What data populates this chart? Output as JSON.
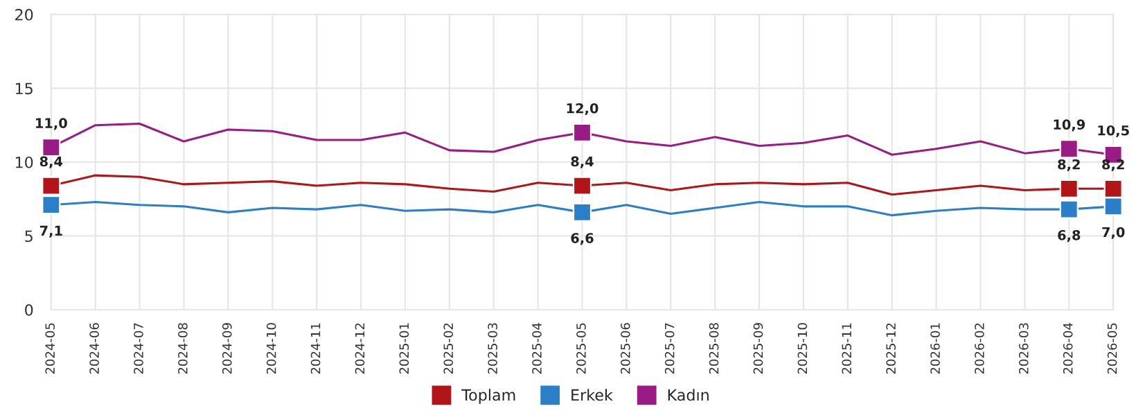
{
  "chart_data": {
    "type": "line",
    "categories": [
      "2024-05",
      "2024-06",
      "2024-07",
      "2024-08",
      "2024-09",
      "2024-10",
      "2024-11",
      "2024-12",
      "2025-01",
      "2025-02",
      "2025-03",
      "2025-04",
      "2025-05",
      "2025-06",
      "2025-07",
      "2025-08",
      "2025-09",
      "2025-10",
      "2025-11",
      "2025-12",
      "2026-01",
      "2026-02",
      "2026-03",
      "2026-04",
      "2026-05"
    ],
    "series": [
      {
        "name": "Toplam",
        "color": "#b11518",
        "values": [
          8.4,
          9.1,
          9.0,
          8.5,
          8.6,
          8.7,
          8.4,
          8.6,
          8.5,
          8.2,
          8.0,
          8.6,
          8.4,
          8.6,
          8.1,
          8.5,
          8.6,
          8.5,
          8.6,
          7.8,
          8.1,
          8.4,
          8.1,
          8.2,
          8.2
        ],
        "value_labels": [
          "8,4",
          null,
          null,
          null,
          null,
          null,
          null,
          null,
          null,
          null,
          null,
          null,
          "8,4",
          null,
          null,
          null,
          null,
          null,
          null,
          null,
          null,
          null,
          null,
          "8,2",
          "8,2"
        ]
      },
      {
        "name": "Erkek",
        "color": "#2a7fc8",
        "values": [
          7.1,
          7.3,
          7.1,
          7.0,
          6.6,
          6.9,
          6.8,
          7.1,
          6.7,
          6.8,
          6.6,
          7.1,
          6.6,
          7.1,
          6.5,
          6.9,
          7.3,
          7.0,
          7.0,
          6.4,
          6.7,
          6.9,
          6.8,
          6.8,
          7.0
        ],
        "value_labels": [
          "7,1",
          null,
          null,
          null,
          null,
          null,
          null,
          null,
          null,
          null,
          null,
          null,
          "6,6",
          null,
          null,
          null,
          null,
          null,
          null,
          null,
          null,
          null,
          null,
          "6,8",
          "7,0"
        ]
      },
      {
        "name": "Kadın",
        "color": "#9a1a86",
        "values": [
          11.0,
          12.5,
          12.6,
          11.4,
          12.2,
          12.1,
          11.5,
          11.5,
          12.0,
          10.8,
          10.7,
          11.5,
          12.0,
          11.4,
          11.1,
          11.7,
          11.1,
          11.3,
          11.8,
          10.5,
          10.9,
          11.4,
          10.6,
          10.9,
          10.5
        ],
        "value_labels": [
          "11,0",
          null,
          null,
          null,
          null,
          null,
          null,
          null,
          null,
          null,
          null,
          null,
          "12,0",
          null,
          null,
          null,
          null,
          null,
          null,
          null,
          null,
          null,
          null,
          "10,9",
          "10,5"
        ]
      }
    ],
    "ylim": [
      0,
      20
    ],
    "yticks": [
      0,
      5,
      10,
      15,
      20
    ],
    "grid": true,
    "legend": "bottom",
    "line_style": "solid"
  }
}
